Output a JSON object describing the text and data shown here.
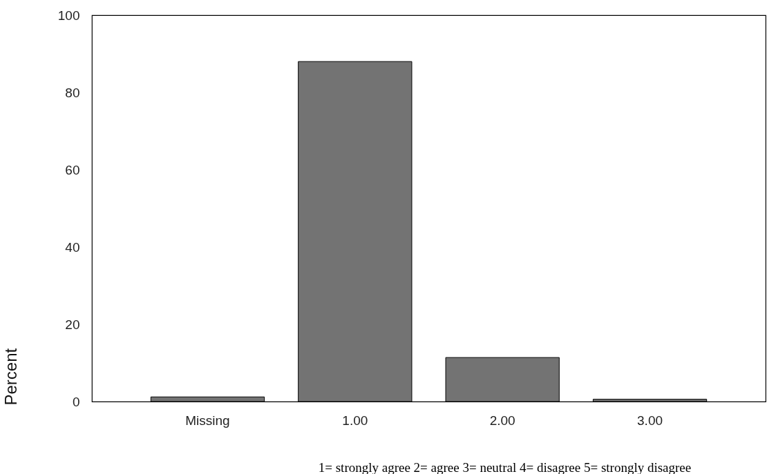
{
  "chart_data": {
    "type": "bar",
    "ylabel": "Percent",
    "categories": [
      "Missing",
      "1.00",
      "2.00",
      "3.00"
    ],
    "values": [
      1.2,
      88,
      11.4,
      0.6
    ],
    "color": "#737373",
    "ylim": [
      0,
      100
    ],
    "yticks": [
      0,
      20,
      40,
      60,
      80,
      100
    ],
    "grid": false,
    "annotations": [
      "1= strongly agree 2= agree 3= neutral 4= disagree 5= strongly disagree"
    ]
  }
}
